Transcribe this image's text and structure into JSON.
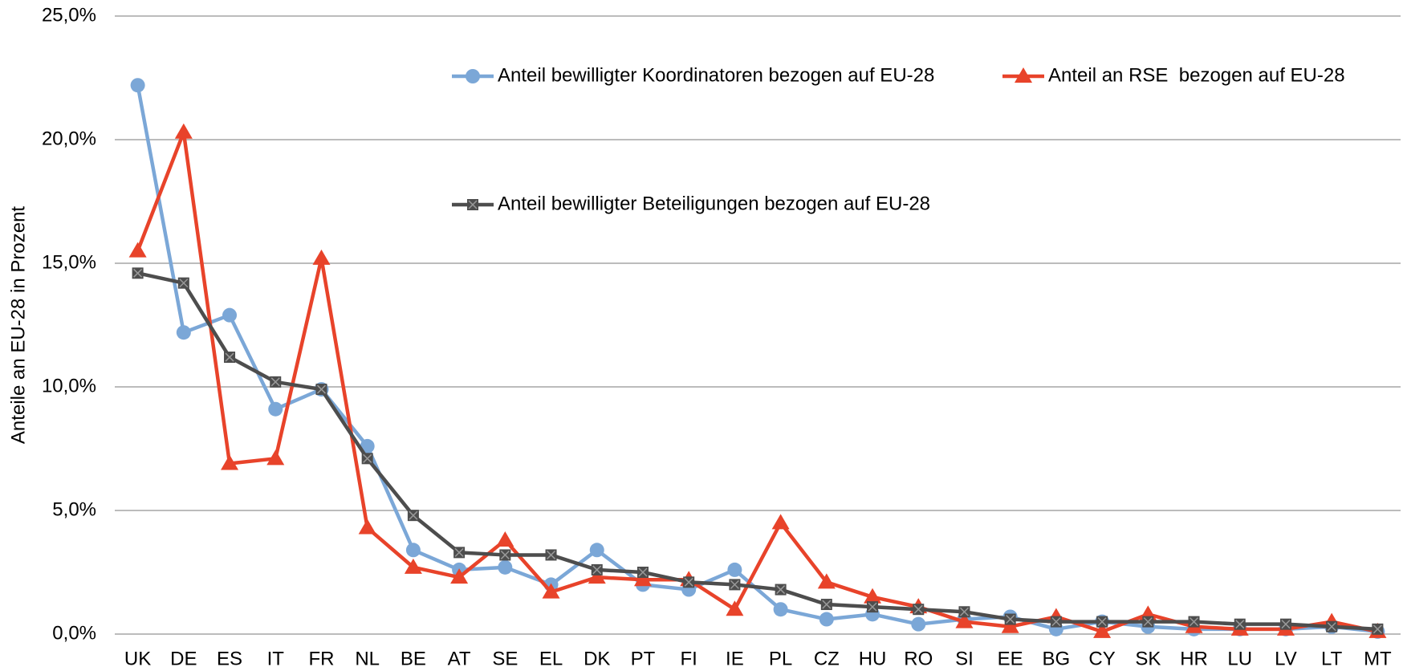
{
  "chart_data": {
    "type": "line",
    "ylabel": "Anteile an EU-28 in Prozent",
    "categories": [
      "UK",
      "DE",
      "ES",
      "IT",
      "FR",
      "NL",
      "BE",
      "AT",
      "SE",
      "EL",
      "DK",
      "PT",
      "FI",
      "IE",
      "PL",
      "CZ",
      "HU",
      "RO",
      "SI",
      "EE",
      "BG",
      "CY",
      "SK",
      "HR",
      "LU",
      "LV",
      "LT",
      "MT"
    ],
    "series": [
      {
        "name": "Anteil bewilligter Koordinatoren bezogen auf EU-28",
        "color": "#7ba7d7",
        "marker": "circle",
        "values": [
          22.2,
          12.2,
          12.9,
          9.1,
          9.9,
          7.6,
          3.4,
          2.6,
          2.7,
          2.0,
          3.4,
          2.0,
          1.8,
          2.6,
          1.0,
          0.6,
          0.8,
          0.4,
          0.6,
          0.7,
          0.2,
          0.5,
          0.3,
          0.2,
          0.2,
          0.2,
          0.3,
          0.1
        ]
      },
      {
        "name": "Anteil an RSE  bezogen auf EU-28",
        "color": "#e8432a",
        "marker": "triangle",
        "values": [
          15.5,
          20.3,
          6.9,
          7.1,
          15.2,
          4.3,
          2.7,
          2.3,
          3.8,
          1.7,
          2.3,
          2.2,
          2.2,
          1.0,
          4.5,
          2.1,
          1.5,
          1.1,
          0.5,
          0.3,
          0.7,
          0.1,
          0.8,
          0.3,
          0.2,
          0.2,
          0.5,
          0.1
        ]
      },
      {
        "name": "Anteil bewilligter Beteiligungen bezogen auf EU-28",
        "color": "#4d4d4d",
        "marker": "square",
        "values": [
          14.6,
          14.2,
          11.2,
          10.2,
          9.9,
          7.1,
          4.8,
          3.3,
          3.2,
          3.2,
          2.6,
          2.5,
          2.1,
          2.0,
          1.8,
          1.2,
          1.1,
          1.0,
          0.9,
          0.6,
          0.5,
          0.5,
          0.5,
          0.5,
          0.4,
          0.4,
          0.3,
          0.2
        ]
      }
    ],
    "ylim": [
      0,
      25
    ],
    "yticks": [
      {
        "value": 0,
        "label": "0,0%"
      },
      {
        "value": 5,
        "label": "5,0%"
      },
      {
        "value": 10,
        "label": "10,0%"
      },
      {
        "value": 15,
        "label": "15,0%"
      },
      {
        "value": 20,
        "label": "20,0%"
      },
      {
        "value": 25,
        "label": "25,0%"
      }
    ],
    "grid": true
  }
}
